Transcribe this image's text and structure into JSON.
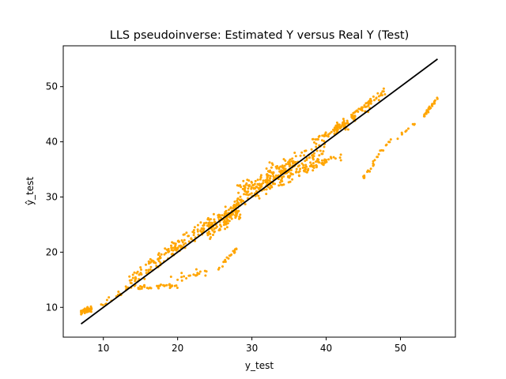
{
  "chart_data": {
    "type": "scatter",
    "title": "LLS pseudoinverse: Estimated Y versus Real Y (Test)",
    "xlabel": "y_test",
    "ylabel": "ŷ_test",
    "xlim": [
      4.6,
      57.4
    ],
    "ylim": [
      4.6,
      57.4
    ],
    "xticks": [
      10,
      20,
      30,
      40,
      50
    ],
    "yticks": [
      10,
      20,
      30,
      40,
      50
    ],
    "grid": false,
    "legend": "none",
    "colors": {
      "points": "#ffa500",
      "reference_line": "#000000"
    },
    "reference_line": {
      "x": [
        7,
        55
      ],
      "y": [
        7,
        55
      ]
    },
    "clusters": [
      {
        "x0": 7.0,
        "x1": 8.5,
        "yb": 9.2,
        "slope": 0.3,
        "spread": 0.7,
        "n": 40
      },
      {
        "x0": 9.5,
        "x1": 13.5,
        "yb": 10.0,
        "slope": 0.9,
        "spread": 0.7,
        "n": 18
      },
      {
        "x0": 13.5,
        "x1": 20.0,
        "yb": 14.5,
        "slope": 1.05,
        "spread": 1.5,
        "n": 90
      },
      {
        "x0": 14.0,
        "x1": 20.0,
        "yb": 13.5,
        "slope": 0.08,
        "spread": 0.5,
        "n": 35
      },
      {
        "x0": 19.0,
        "x1": 24.0,
        "yb": 15.0,
        "slope": 0.3,
        "spread": 1.0,
        "n": 20
      },
      {
        "x0": 20.0,
        "x1": 25.0,
        "yb": 21.0,
        "slope": 1.0,
        "spread": 1.5,
        "n": 70
      },
      {
        "x0": 24.0,
        "x1": 28.5,
        "yb": 24.0,
        "slope": 0.9,
        "spread": 2.2,
        "n": 140
      },
      {
        "x0": 25.5,
        "x1": 28.0,
        "yb": 17.0,
        "slope": 1.5,
        "spread": 0.8,
        "n": 20
      },
      {
        "x0": 28.0,
        "x1": 33.0,
        "yb": 30.0,
        "slope": 0.9,
        "spread": 2.5,
        "n": 100
      },
      {
        "x0": 30.0,
        "x1": 36.0,
        "yb": 30.0,
        "slope": 1.1,
        "spread": 2.2,
        "n": 90
      },
      {
        "x0": 33.0,
        "x1": 40.0,
        "yb": 33.0,
        "slope": 0.8,
        "spread": 2.5,
        "n": 100
      },
      {
        "x0": 37.0,
        "x1": 42.0,
        "yb": 35.0,
        "slope": 0.5,
        "spread": 1.2,
        "n": 35
      },
      {
        "x0": 38.0,
        "x1": 43.0,
        "yb": 40.0,
        "slope": 0.6,
        "spread": 1.0,
        "n": 45
      },
      {
        "x0": 41.0,
        "x1": 46.0,
        "yb": 42.0,
        "slope": 1.0,
        "spread": 1.3,
        "n": 60
      },
      {
        "x0": 44.0,
        "x1": 48.0,
        "yb": 45.5,
        "slope": 0.9,
        "spread": 0.8,
        "n": 30
      },
      {
        "x0": 45.0,
        "x1": 46.5,
        "yb": 33.5,
        "slope": 1.5,
        "spread": 0.6,
        "n": 12
      },
      {
        "x0": 46.0,
        "x1": 49.0,
        "yb": 36.0,
        "slope": 1.6,
        "spread": 0.6,
        "n": 14
      },
      {
        "x0": 49.5,
        "x1": 52.0,
        "yb": 40.5,
        "slope": 1.2,
        "spread": 0.4,
        "n": 10
      },
      {
        "x0": 53.0,
        "x1": 55.0,
        "yb": 44.5,
        "slope": 1.7,
        "spread": 0.5,
        "n": 28
      }
    ]
  }
}
